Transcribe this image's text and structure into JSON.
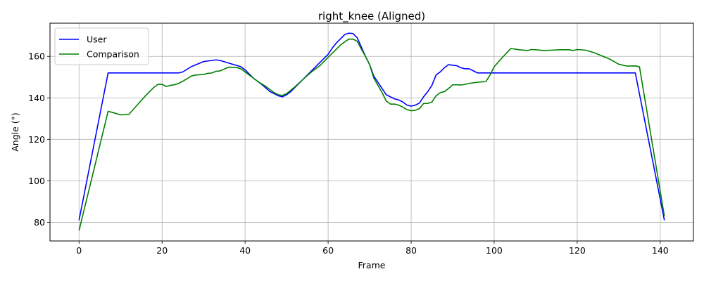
{
  "chart_data": {
    "type": "line",
    "title": "right_knee (Aligned)",
    "xlabel": "Frame",
    "ylabel": "Angle (°)",
    "xlim": [
      -7,
      148
    ],
    "ylim": [
      71,
      176
    ],
    "xticks": [
      0,
      20,
      40,
      60,
      80,
      100,
      120,
      140
    ],
    "yticks": [
      80,
      100,
      120,
      140,
      160
    ],
    "grid": true,
    "legend_position": "top-left",
    "series": [
      {
        "name": "User",
        "color": "#0000ff",
        "x": [
          0,
          7,
          24,
          25,
          27,
          30,
          33,
          34,
          39,
          40,
          42,
          44,
          46,
          48,
          49,
          50,
          51,
          53,
          55,
          58,
          60,
          61,
          62,
          63,
          64,
          65,
          66,
          67,
          68,
          69,
          70,
          71,
          72,
          73,
          74,
          76,
          77,
          78,
          79,
          80,
          81,
          82,
          83,
          84,
          85,
          86,
          87,
          88,
          89,
          91,
          92,
          93,
          94,
          95,
          96,
          134,
          141
        ],
        "y": [
          81,
          152,
          152,
          152.5,
          155,
          157.5,
          158.3,
          158,
          155,
          153.5,
          149.5,
          146.5,
          143,
          141,
          140.5,
          141.5,
          143,
          147,
          151,
          157,
          161,
          164,
          166.5,
          168.5,
          170.5,
          171.2,
          171,
          169,
          164.5,
          160,
          156,
          150.5,
          147.5,
          144.5,
          141.5,
          139.5,
          139,
          138,
          136.5,
          136,
          136.5,
          137.5,
          140.5,
          143,
          146,
          151,
          152.5,
          154.5,
          156,
          155.5,
          154.5,
          154,
          154,
          153,
          152,
          152,
          81
        ]
      },
      {
        "name": "Comparison",
        "color": "#008000",
        "x": [
          0,
          7,
          8,
          10,
          12,
          14,
          16,
          18,
          19,
          20,
          21,
          22,
          23,
          24,
          25,
          26,
          27,
          28,
          30,
          31,
          32,
          33,
          34,
          36,
          38,
          39,
          41,
          43,
          45,
          47,
          48,
          49,
          50,
          52,
          54,
          56,
          58,
          60,
          61,
          62,
          63,
          64,
          65,
          66,
          67,
          68,
          69,
          70,
          71,
          72,
          73,
          74,
          75,
          76,
          77,
          78,
          79,
          80,
          81,
          82,
          83,
          84,
          85,
          86,
          87,
          88,
          89,
          90,
          91,
          92,
          93,
          94,
          96,
          97,
          98,
          99,
          100,
          102,
          104,
          106,
          108,
          109,
          110,
          112,
          114,
          116,
          118,
          119,
          120,
          122,
          124,
          126,
          128,
          130,
          132,
          134,
          135,
          141
        ],
        "y": [
          76,
          133.5,
          133,
          131.8,
          132,
          136.5,
          141,
          145,
          146.5,
          146.5,
          145.5,
          146,
          146.3,
          147,
          148,
          149.2,
          150.5,
          151,
          151.3,
          151.8,
          152,
          152.8,
          153,
          154.8,
          154.6,
          154,
          151,
          148,
          145.5,
          142.5,
          141.5,
          141.2,
          142,
          145.3,
          149,
          152.5,
          155.5,
          159.5,
          161.5,
          163.5,
          165.5,
          167,
          168.3,
          168.3,
          167.3,
          163.5,
          160,
          156,
          149.5,
          146,
          142.5,
          138.5,
          137,
          137,
          136.5,
          135.5,
          134.3,
          133.8,
          134,
          134.8,
          137.3,
          137.3,
          138,
          141,
          142.5,
          143,
          144.5,
          146.3,
          146.3,
          146.2,
          146.5,
          147,
          147.5,
          147.7,
          147.8,
          151,
          155,
          159.5,
          163.8,
          163.2,
          162.8,
          163.3,
          163.2,
          162.8,
          163,
          163.2,
          163.2,
          162.8,
          163.3,
          163,
          161.8,
          160.2,
          158.5,
          156.2,
          155.3,
          155.4,
          155,
          83
        ]
      }
    ]
  }
}
